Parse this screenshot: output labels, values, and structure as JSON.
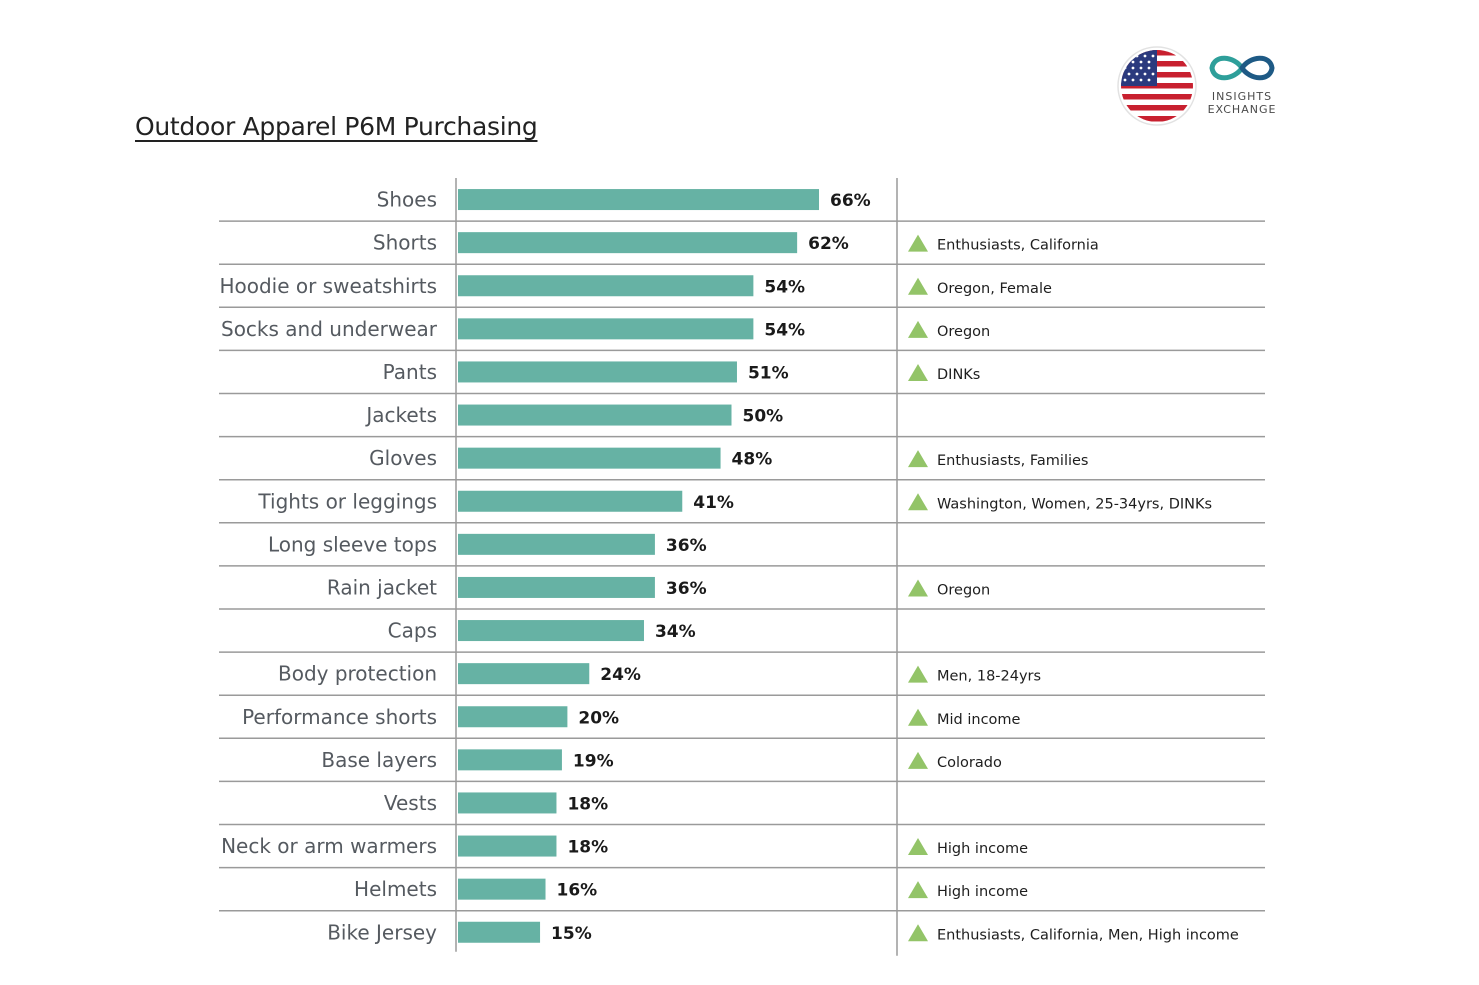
{
  "title": "Outdoor Apparel P6M Purchasing",
  "logo": {
    "flag_icon": "us-flag-icon",
    "mark_icon": "infinity-icon",
    "line1": "INSIGHTS",
    "line2": "EXCHANGE"
  },
  "colors": {
    "bar": "#66b2a4",
    "triangle": "#93c468",
    "grid": "#9a9a9a",
    "logo_teal": "#2e9f9a",
    "logo_blue": "#1e5a85"
  },
  "chart_data": {
    "type": "bar",
    "orientation": "horizontal",
    "title": "Outdoor Apparel P6M Purchasing",
    "xlim": [
      0,
      100
    ],
    "categories": [
      "Shoes",
      "Shorts",
      "Hoodie or sweatshirts",
      "Socks and underwear",
      "Pants",
      "Jackets",
      "Gloves",
      "Tights or leggings",
      "Long sleeve tops",
      "Rain jacket",
      "Caps",
      "Body protection",
      "Performance shorts",
      "Base layers",
      "Vests",
      "Neck or arm warmers",
      "Helmets",
      "Bike Jersey"
    ],
    "values": [
      66,
      62,
      54,
      54,
      51,
      50,
      48,
      41,
      36,
      36,
      34,
      24,
      20,
      19,
      18,
      18,
      16,
      15
    ],
    "value_labels": [
      "66%",
      "62%",
      "54%",
      "54%",
      "51%",
      "50%",
      "48%",
      "41%",
      "36%",
      "36%",
      "34%",
      "24%",
      "20%",
      "19%",
      "18%",
      "18%",
      "16%",
      "15%"
    ],
    "annotations": [
      "",
      "Enthusiasts, California",
      "Oregon, Female",
      "Oregon",
      "DINKs",
      "",
      "Enthusiasts, Families",
      "Washington, Women, 25-34yrs, DINKs",
      "",
      "Oregon",
      "",
      "Men, 18-24yrs",
      "Mid income",
      "Colorado",
      "",
      "High income",
      "High income",
      "Enthusiasts, California, Men, High income"
    ],
    "annotation_icon": "up-triangle-icon"
  }
}
